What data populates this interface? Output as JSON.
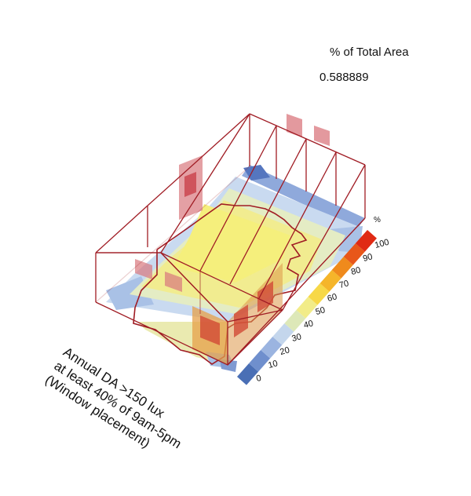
{
  "metric": {
    "title": "% of Total Area",
    "value": "0.588889"
  },
  "annotation": {
    "lines": [
      "Annual DA >150 lux",
      "at least 40% of 9am-5pm",
      "(Window placement)"
    ]
  },
  "legend": {
    "unit": "%",
    "ticks": [
      "0",
      "10",
      "20",
      "30",
      "40",
      "50",
      "60",
      "70",
      "80",
      "90",
      "100"
    ],
    "colors": [
      "#4a6fb5",
      "#6f8fcd",
      "#9bb4e0",
      "#c4d6ec",
      "#dde8b8",
      "#f2ec88",
      "#f7d847",
      "#f5b52a",
      "#ef8a1c",
      "#e8571a",
      "#e02a14"
    ]
  },
  "colors": {
    "wireframe": "#a01c24",
    "window_fill": "#d9777d",
    "floor_yellow": "#f3ee8a"
  }
}
